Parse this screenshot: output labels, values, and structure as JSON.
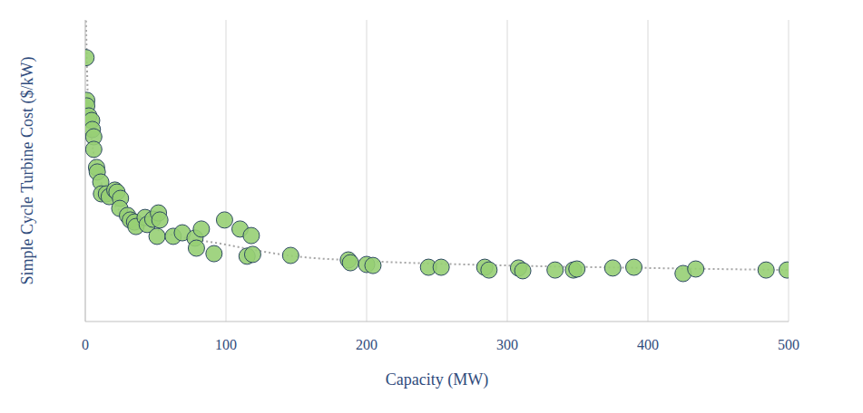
{
  "chart_data": {
    "type": "scatter",
    "x_label": "Capacity (MW)",
    "y_label": "Simple Cycle Turbine Cost ($/kW)",
    "xlim": [
      0,
      500
    ],
    "xticks": [
      0,
      100,
      200,
      300,
      400,
      500
    ],
    "ylim": [
      0,
      1200
    ],
    "yticks": [
      0,
      200,
      400,
      600,
      800,
      1000,
      1200
    ],
    "grid": true,
    "tick_labels": "x",
    "series": [
      {
        "type": "scatter",
        "color": "#97cf74",
        "marker": "circle",
        "x": [
          0.5,
          1,
          1,
          2.5,
          4.5,
          5,
          6,
          6,
          8,
          8.5,
          11,
          11.5,
          15,
          17,
          21,
          22.5,
          25,
          24.5,
          30,
          32,
          35,
          36,
          42.5,
          44,
          48,
          52,
          53,
          51,
          62.5,
          69,
          78,
          79,
          82.5,
          91.5,
          99,
          110,
          118,
          115,
          119,
          146,
          187,
          188.5,
          200,
          204.5,
          244,
          253,
          284,
          287,
          308,
          311,
          334,
          347,
          349.5,
          375,
          390,
          425,
          434,
          484,
          499
        ],
        "values": [
          1050,
          880,
          858,
          818,
          800,
          764,
          735,
          685,
          613,
          595,
          555,
          508,
          508,
          497,
          523,
          515,
          490,
          450,
          422,
          404,
          396,
          378,
          414,
          386,
          407,
          432,
          404,
          339,
          339,
          353,
          332,
          292,
          368,
          270,
          404,
          368,
          342,
          260,
          267,
          263,
          245,
          234,
          227,
          223,
          216,
          216,
          216,
          205,
          213,
          202,
          205,
          205,
          209,
          213,
          216,
          191,
          209,
          205,
          205
        ]
      },
      {
        "type": "line",
        "color": "#a6a6a6",
        "line_style": "dotted",
        "x": [
          0.5,
          1,
          2,
          5,
          10,
          20,
          50,
          100,
          150,
          200,
          300,
          400,
          500
        ],
        "values": [
          1197,
          1063,
          865,
          703,
          577,
          468,
          368,
          306,
          259,
          241,
          223,
          213,
          205
        ]
      }
    ]
  }
}
